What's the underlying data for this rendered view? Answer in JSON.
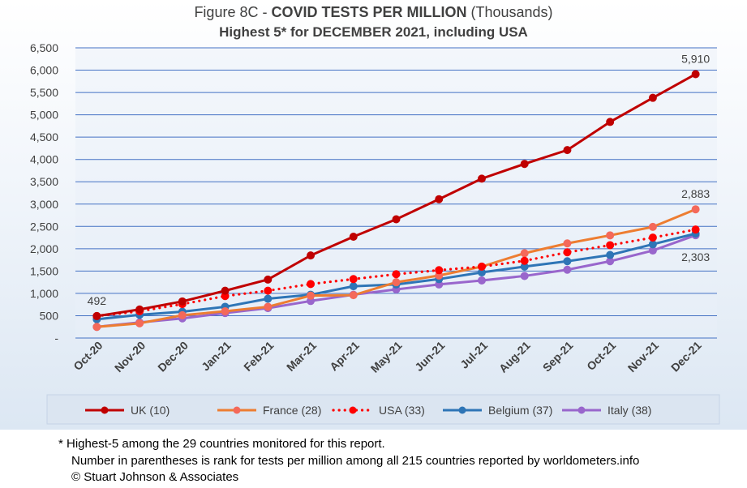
{
  "title": {
    "prefix": "Figure 8C - ",
    "main": "COVID TESTS PER MILLION",
    "suffix": " (Thousands)",
    "subtitle": "Highest 5* for DECEMBER 2021, including USA"
  },
  "chart_data": {
    "type": "line",
    "categories": [
      "Oct-20",
      "Nov-20",
      "Dec-20",
      "Jan-21",
      "Feb-21",
      "Mar-21",
      "Apr-21",
      "May-21",
      "Jun-21",
      "Jul-21",
      "Aug-21",
      "Sep-21",
      "Oct-21",
      "Nov-21",
      "Dec-21"
    ],
    "ylim": [
      0,
      6500
    ],
    "yticks": [
      0,
      500,
      1000,
      1500,
      2000,
      2500,
      3000,
      3500,
      4000,
      4500,
      5000,
      5500,
      6000,
      6500
    ],
    "ytick_labels": [
      "-",
      "500",
      "1,000",
      "1,500",
      "2,000",
      "2,500",
      "3,000",
      "3,500",
      "4,000",
      "4,500",
      "5,000",
      "5,500",
      "6,000",
      "6,500"
    ],
    "grid": true,
    "legend_position": "bottom",
    "series": [
      {
        "name": "UK (10)",
        "color": "#c00000",
        "dash": "solid",
        "marker_color": "#c00000",
        "values": [
          492,
          640,
          820,
          1060,
          1310,
          1850,
          2270,
          2660,
          3110,
          3570,
          3900,
          4210,
          4840,
          5380,
          5910
        ]
      },
      {
        "name": "France (28)",
        "color": "#ed7d31",
        "dash": "solid",
        "marker_color": "#f4695a",
        "values": [
          250,
          330,
          510,
          600,
          700,
          950,
          960,
          1250,
          1400,
          1600,
          1900,
          2120,
          2300,
          2490,
          2883
        ]
      },
      {
        "name": "USA (33)",
        "color": "#ff0000",
        "dash": "dotted",
        "marker_color": "#ff0000",
        "values": [
          492,
          600,
          760,
          940,
          1060,
          1210,
          1320,
          1430,
          1520,
          1600,
          1730,
          1920,
          2080,
          2250,
          2430
        ]
      },
      {
        "name": "Belgium (37)",
        "color": "#2e75b6",
        "dash": "solid",
        "marker_color": "#2e75b6",
        "values": [
          420,
          520,
          590,
          700,
          880,
          970,
          1160,
          1200,
          1320,
          1470,
          1600,
          1720,
          1860,
          2100,
          2340
        ]
      },
      {
        "name": "Italy (38)",
        "color": "#9966cc",
        "dash": "solid",
        "marker_color": "#9966cc",
        "values": [
          250,
          350,
          440,
          560,
          670,
          830,
          970,
          1090,
          1200,
          1290,
          1390,
          1530,
          1720,
          1960,
          2303
        ]
      }
    ],
    "annotations": [
      {
        "text": "492",
        "series": 0,
        "index": 0,
        "pos": "above"
      },
      {
        "text": "5,910",
        "series": 0,
        "index": 14,
        "pos": "above"
      },
      {
        "text": "2,883",
        "series": 1,
        "index": 14,
        "pos": "above"
      },
      {
        "text": "2,303",
        "series": 4,
        "index": 14,
        "pos": "below"
      }
    ]
  },
  "footnote": {
    "line1": "* Highest-5 among the 29 countries monitored for this report.",
    "line2": "Number in parentheses is rank for tests per million among all 215 countries reported by worldometers.info",
    "line3": "© Stuart Johnson & Associates"
  }
}
